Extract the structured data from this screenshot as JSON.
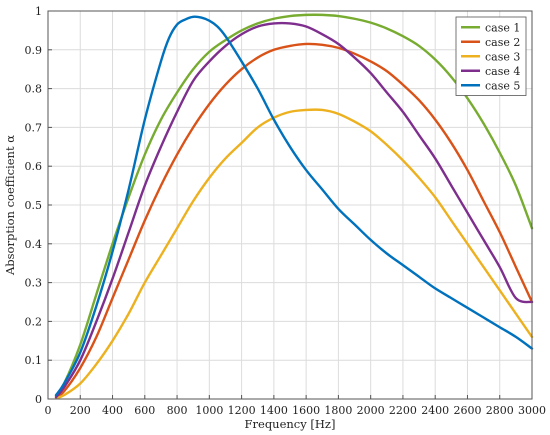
{
  "chart_data": {
    "type": "line",
    "title": "",
    "xlabel": "Frequency [Hz]",
    "ylabel": "Absorption coefficient α",
    "xlim": [
      0,
      3000
    ],
    "ylim": [
      0,
      1
    ],
    "xticks": [
      0,
      200,
      400,
      600,
      800,
      1000,
      1200,
      1400,
      1600,
      1800,
      2000,
      2200,
      2400,
      2600,
      2800,
      3000
    ],
    "yticks": [
      0,
      0.1,
      0.2,
      0.3,
      0.4,
      0.5,
      0.6,
      0.7,
      0.8,
      0.9,
      1
    ],
    "ytick_labels": [
      "0",
      "0.1",
      "0.2",
      "0.3",
      "0.4",
      "0.5",
      "0.6",
      "0.7",
      "0.8",
      "0.9",
      "1"
    ],
    "grid": true,
    "legend_position": "top-right",
    "series": [
      {
        "name": "case 1",
        "color": "#77ac30",
        "x": [
          50,
          100,
          200,
          300,
          400,
          500,
          600,
          700,
          800,
          900,
          1000,
          1100,
          1200,
          1300,
          1400,
          1500,
          1600,
          1700,
          1800,
          1900,
          2000,
          2100,
          2200,
          2300,
          2400,
          2500,
          2600,
          2700,
          2800,
          2900,
          3000
        ],
        "y": [
          0.01,
          0.04,
          0.14,
          0.27,
          0.4,
          0.52,
          0.63,
          0.72,
          0.79,
          0.85,
          0.895,
          0.925,
          0.95,
          0.968,
          0.98,
          0.987,
          0.99,
          0.99,
          0.987,
          0.98,
          0.97,
          0.955,
          0.935,
          0.91,
          0.875,
          0.83,
          0.775,
          0.71,
          0.635,
          0.55,
          0.44
        ]
      },
      {
        "name": "case 2",
        "color": "#d95319",
        "x": [
          50,
          100,
          200,
          300,
          400,
          500,
          600,
          700,
          800,
          900,
          1000,
          1100,
          1200,
          1300,
          1400,
          1500,
          1600,
          1700,
          1800,
          1900,
          2000,
          2100,
          2200,
          2300,
          2400,
          2500,
          2600,
          2700,
          2800,
          2900,
          3000
        ],
        "y": [
          0.005,
          0.02,
          0.08,
          0.16,
          0.26,
          0.36,
          0.46,
          0.55,
          0.63,
          0.7,
          0.76,
          0.81,
          0.85,
          0.88,
          0.9,
          0.91,
          0.915,
          0.913,
          0.905,
          0.89,
          0.87,
          0.845,
          0.81,
          0.77,
          0.72,
          0.66,
          0.59,
          0.51,
          0.43,
          0.34,
          0.25
        ]
      },
      {
        "name": "case 3",
        "color": "#edb120",
        "x": [
          50,
          100,
          200,
          300,
          400,
          500,
          600,
          700,
          800,
          900,
          1000,
          1100,
          1200,
          1300,
          1400,
          1500,
          1600,
          1700,
          1800,
          1900,
          2000,
          2100,
          2200,
          2300,
          2400,
          2500,
          2600,
          2700,
          2800,
          2900,
          3000
        ],
        "y": [
          0.002,
          0.01,
          0.04,
          0.09,
          0.15,
          0.22,
          0.3,
          0.37,
          0.44,
          0.51,
          0.57,
          0.62,
          0.66,
          0.7,
          0.725,
          0.74,
          0.745,
          0.745,
          0.735,
          0.715,
          0.69,
          0.655,
          0.615,
          0.57,
          0.52,
          0.46,
          0.4,
          0.34,
          0.28,
          0.22,
          0.16
        ]
      },
      {
        "name": "case 4",
        "color": "#7e2f8e",
        "x": [
          50,
          100,
          200,
          300,
          400,
          500,
          600,
          700,
          800,
          900,
          1000,
          1100,
          1200,
          1300,
          1400,
          1500,
          1600,
          1700,
          1800,
          1900,
          2000,
          2100,
          2200,
          2300,
          2400,
          2500,
          2600,
          2700,
          2800,
          2900,
          3000
        ],
        "y": [
          0.005,
          0.03,
          0.1,
          0.2,
          0.31,
          0.43,
          0.55,
          0.65,
          0.74,
          0.82,
          0.87,
          0.91,
          0.94,
          0.96,
          0.968,
          0.968,
          0.96,
          0.94,
          0.915,
          0.88,
          0.84,
          0.79,
          0.74,
          0.68,
          0.62,
          0.55,
          0.48,
          0.41,
          0.34,
          0.26,
          0.25
        ]
      },
      {
        "name": "case 5",
        "color": "#0072bd",
        "x": [
          50,
          100,
          200,
          300,
          400,
          500,
          600,
          700,
          750,
          800,
          850,
          900,
          950,
          1000,
          1050,
          1100,
          1200,
          1300,
          1400,
          1500,
          1600,
          1700,
          1800,
          1900,
          2000,
          2100,
          2200,
          2300,
          2400,
          2500,
          2600,
          2700,
          2800,
          2900,
          3000
        ],
        "y": [
          0.01,
          0.04,
          0.12,
          0.24,
          0.38,
          0.54,
          0.72,
          0.87,
          0.93,
          0.965,
          0.978,
          0.985,
          0.983,
          0.975,
          0.96,
          0.935,
          0.87,
          0.8,
          0.72,
          0.65,
          0.59,
          0.54,
          0.49,
          0.45,
          0.41,
          0.375,
          0.345,
          0.315,
          0.285,
          0.26,
          0.235,
          0.21,
          0.185,
          0.16,
          0.13
        ]
      }
    ]
  }
}
